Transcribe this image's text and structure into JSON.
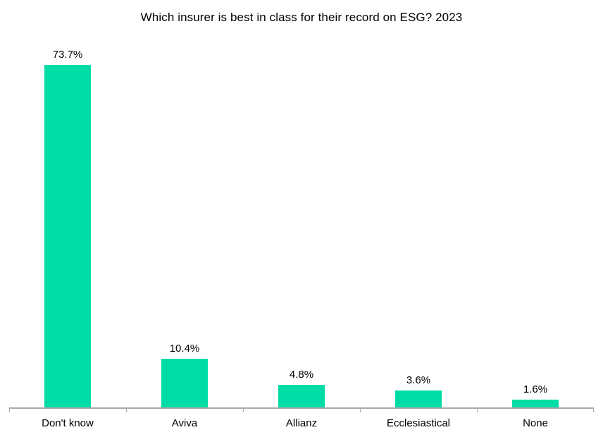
{
  "chart_data": {
    "type": "bar",
    "title": "Which insurer is best in class for their record on ESG? 2023",
    "categories": [
      "Don't know",
      "Aviva",
      "Allianz",
      "Ecclesiastical",
      "None"
    ],
    "values": [
      73.7,
      10.4,
      4.8,
      3.6,
      1.6
    ],
    "data_labels": [
      "73.7%",
      "10.4%",
      "4.8%",
      "3.6%",
      "1.6%"
    ],
    "xlabel": "",
    "ylabel": "",
    "ylim": [
      0,
      80
    ],
    "grid": false,
    "legend": false,
    "value_axis_visible": false,
    "bar_color": "#00DCA5",
    "axis_color": "#A9A9A9",
    "text_color": "#000000"
  }
}
